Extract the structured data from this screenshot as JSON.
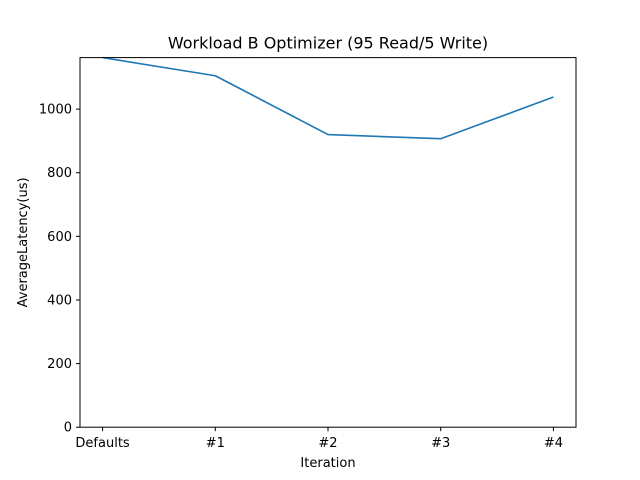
{
  "chart_data": {
    "type": "line",
    "title": "Workload B Optimizer (95 Read/5 Write)",
    "xlabel": "Iteration",
    "ylabel": "AverageLatency(us)",
    "categories": [
      "Defaults",
      "#1",
      "#2",
      "#3",
      "#4"
    ],
    "series": [
      {
        "values": [
          1162,
          1105,
          920,
          907,
          1038
        ],
        "color": "#1f77b4"
      }
    ],
    "ylim": [
      0,
      1162
    ],
    "yticks": [
      0,
      200,
      400,
      600,
      800,
      1000
    ],
    "grid": false,
    "legend": "none"
  }
}
